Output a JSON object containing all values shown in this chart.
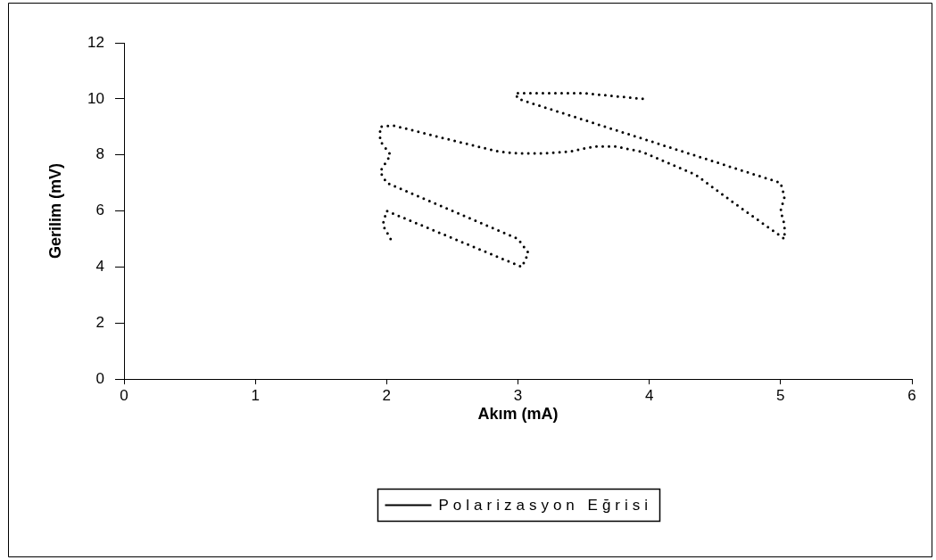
{
  "chart_data": {
    "type": "line",
    "xlabel": "Akım (mA)",
    "ylabel": "Gerilim (mV)",
    "xlim": [
      0,
      6
    ],
    "xticks": [
      0,
      1,
      2,
      3,
      4,
      5,
      6
    ],
    "ylim": [
      0,
      12
    ],
    "yticks": [
      0,
      2,
      4,
      6,
      8,
      10,
      12
    ],
    "grid": false,
    "legend": "bottom",
    "marker": "none",
    "line_style": "dotted",
    "series": [
      {
        "name": "Polarizasyon Eğrisi",
        "color": "#000000",
        "x": [
          2.03,
          1.97,
          2.0,
          3.03,
          3.08,
          3.0,
          2.0,
          1.95,
          2.03,
          1.95,
          1.95,
          2.05,
          2.43,
          2.85,
          3.0,
          3.2,
          3.4,
          3.58,
          3.75,
          3.95,
          4.35,
          4.64,
          5.03,
          5.03,
          5.0,
          5.03,
          5.0,
          3.0,
          2.98,
          3.5,
          3.95
        ],
        "values": [
          5.0,
          5.5,
          6.0,
          4.0,
          4.5,
          5.0,
          7.0,
          7.4,
          8.0,
          8.5,
          9.0,
          9.05,
          8.6,
          8.12,
          8.05,
          8.05,
          8.12,
          8.3,
          8.3,
          8.1,
          7.3,
          6.3,
          5.0,
          5.5,
          6.0,
          6.5,
          7.0,
          10.0,
          10.2,
          10.2,
          10.0
        ]
      }
    ]
  }
}
